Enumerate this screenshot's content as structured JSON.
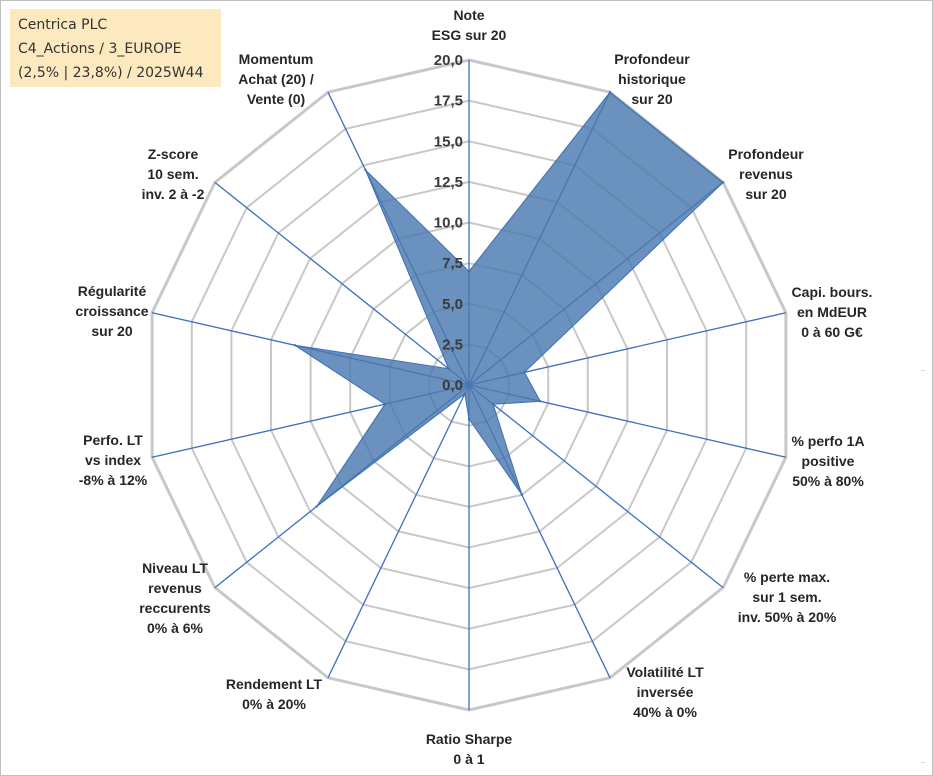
{
  "info_box": {
    "line1": "Centrica PLC",
    "line2": "C4_Actions / 3_EUROPE",
    "line3": "(2,5% | 23,8%) / 2025W44"
  },
  "colors": {
    "fill": "#4a79b0",
    "stroke": "#3f6fb5",
    "grid": "#c8c8c8",
    "axis": "#3c6fc0",
    "info_bg": "#fde9bf"
  },
  "chart_data": {
    "type": "radar",
    "rmax": 20,
    "tick_step": 2.5,
    "tick_labels": [
      "0,0",
      "2,5",
      "5,0",
      "7,5",
      "10,0",
      "12,5",
      "15,0",
      "17,5",
      "20,0"
    ],
    "categories": [
      [
        "Note",
        "ESG sur 20"
      ],
      [
        "Profondeur",
        "historique",
        "sur 20"
      ],
      [
        "Profondeur",
        "revenus",
        "sur 20"
      ],
      [
        "Capi. bours.",
        "en MdEUR",
        "0 à 60 G€"
      ],
      [
        "% perfo 1A",
        "positive",
        "50% à 80%"
      ],
      [
        "% perte max.",
        "sur 1 sem.",
        "inv. 50% à 20%"
      ],
      [
        "Volatilité LT",
        "inversée",
        "40% à 0%"
      ],
      [
        "Ratio Sharpe",
        "0 à 1"
      ],
      [
        "Rendement LT",
        "0% à 20%"
      ],
      [
        "Niveau LT",
        "revenus",
        "reccurents",
        "0% à 6%"
      ],
      [
        "Perfo. LT",
        "vs index",
        "-8% à 12%"
      ],
      [
        "Régularité",
        "croissance",
        "sur 20"
      ],
      [
        "Z-score",
        "10 sem.",
        "inv. 2 à -2"
      ],
      [
        "Momentum",
        "Achat (20) /",
        "Vente (0)"
      ]
    ],
    "series": [
      {
        "values": [
          7.0,
          20.0,
          20.0,
          3.5,
          4.5,
          1.9,
          7.5,
          2.1,
          0.6,
          12.0,
          5.3,
          11.0,
          1.6,
          14.7
        ]
      }
    ]
  }
}
